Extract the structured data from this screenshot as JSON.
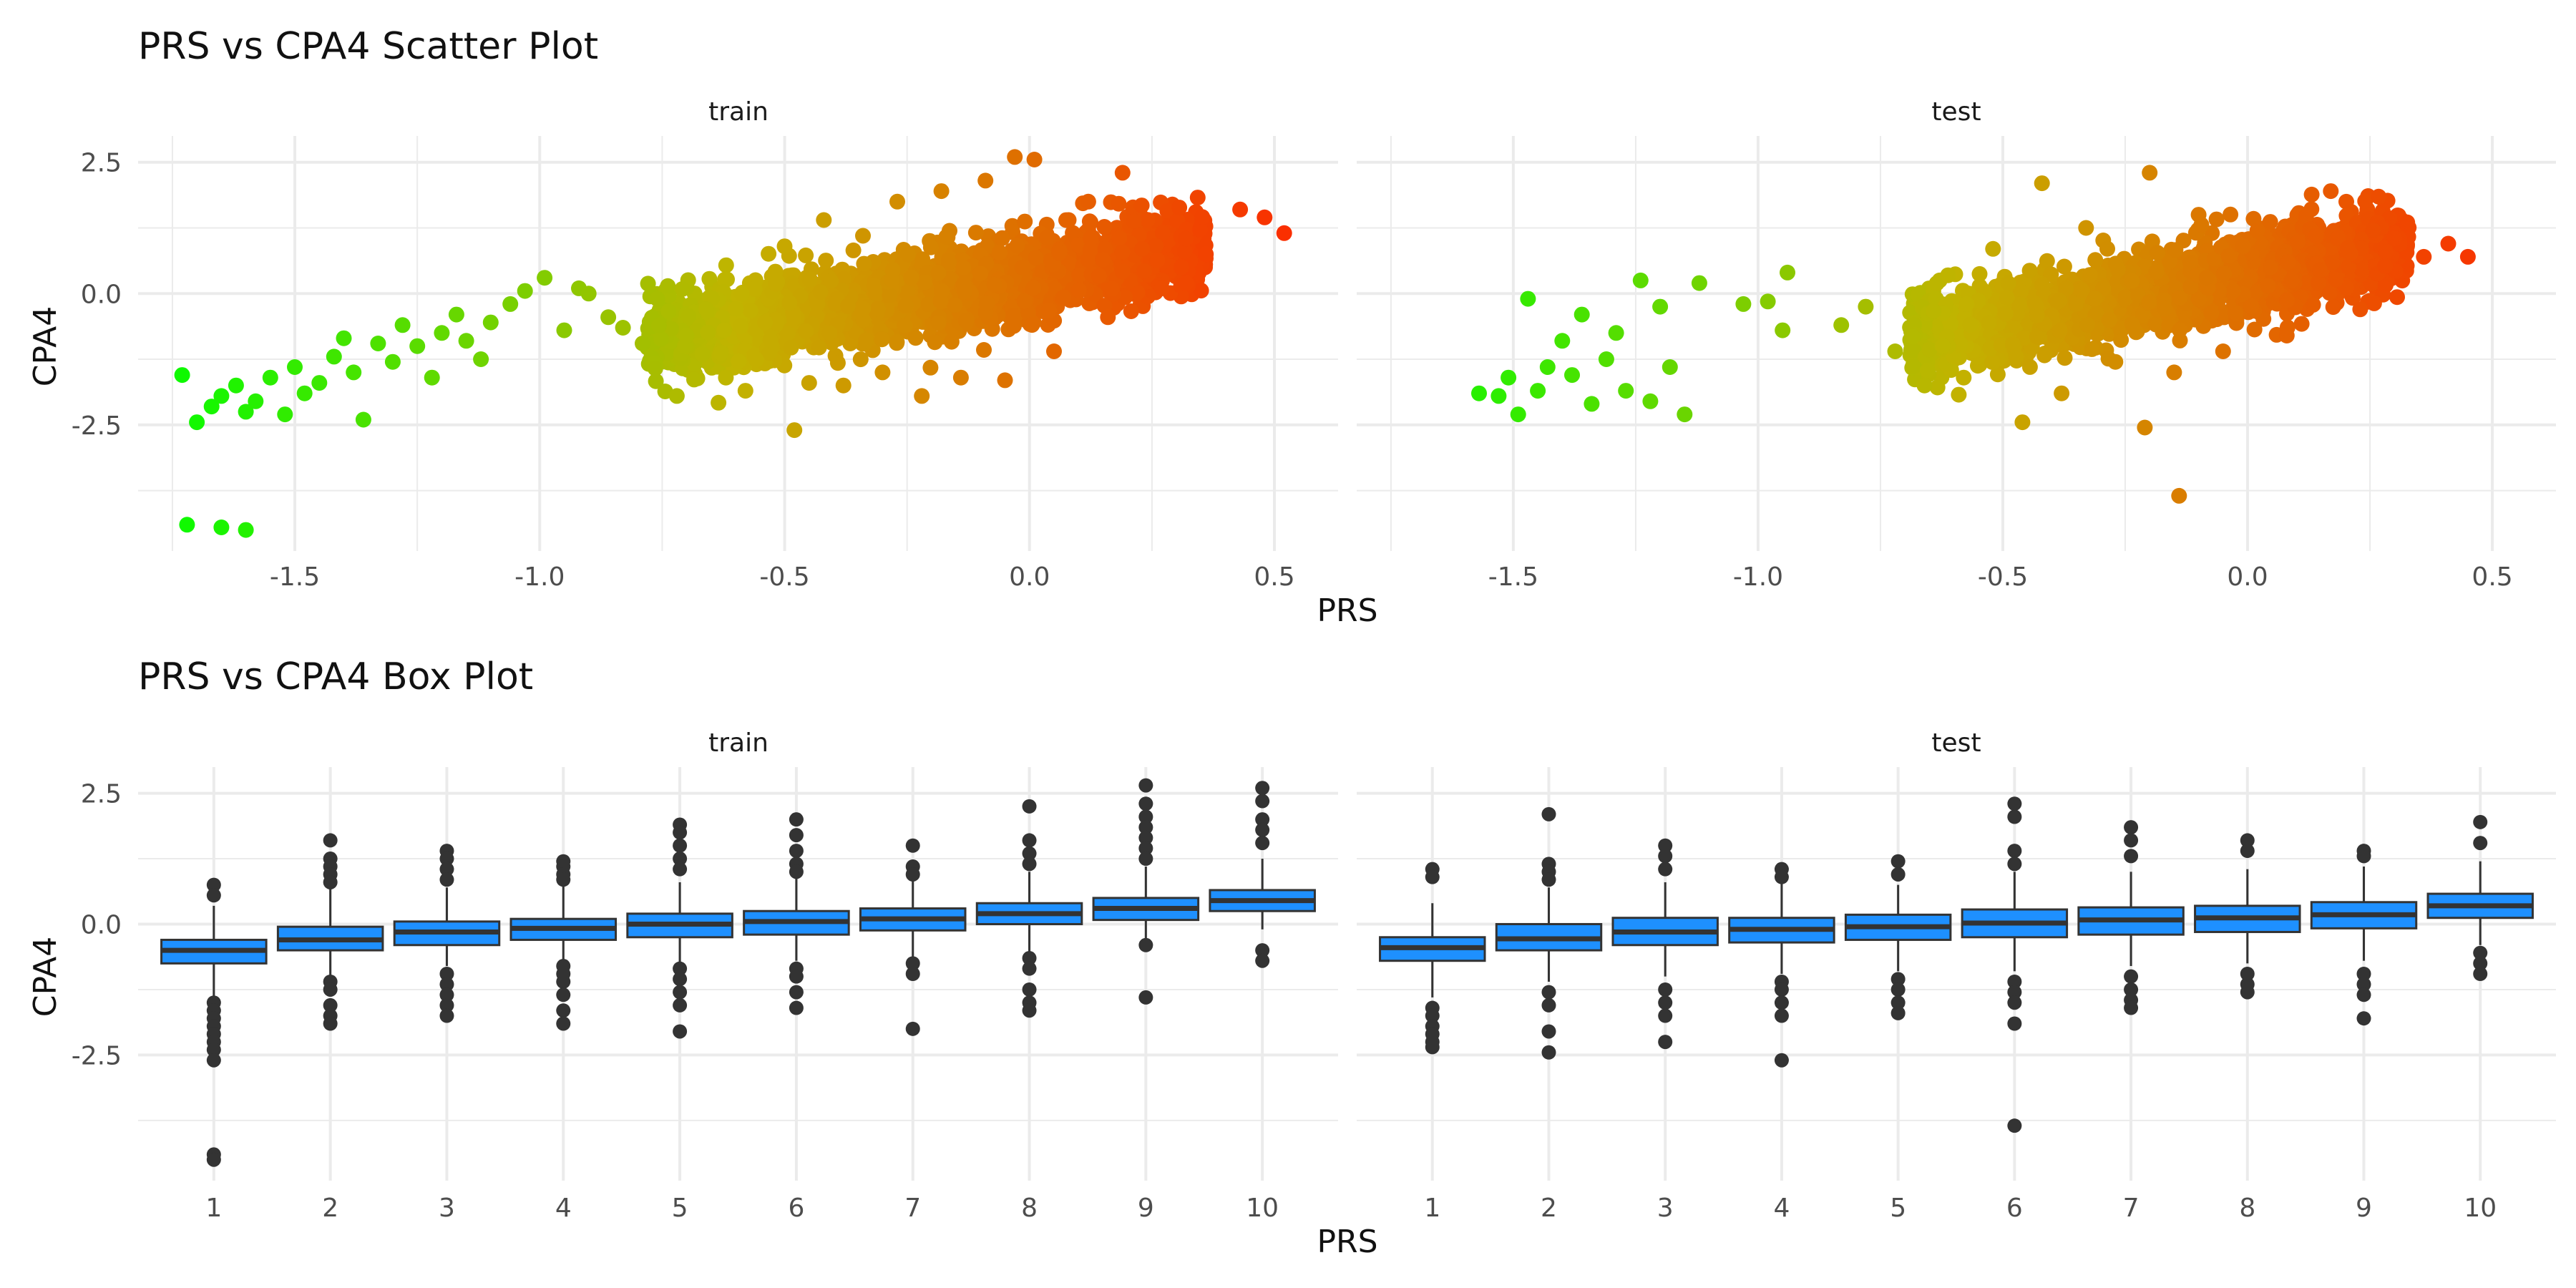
{
  "chart_data": [
    {
      "type": "scatter",
      "title": "PRS vs CPA4 Scatter Plot",
      "xlabel": "PRS",
      "ylabel": "CPA4",
      "grid": true,
      "legend": "none",
      "xlim": [
        -1.82,
        0.63
      ],
      "ylim": [
        -4.9,
        3.0
      ],
      "x_ticks": [
        -1.5,
        -1.0,
        -0.5,
        0.0,
        0.5
      ],
      "x_tick_labels": [
        "-1.5",
        "-1.0",
        "-0.5",
        "0.0",
        "0.5"
      ],
      "y_ticks": [
        2.5,
        0.0,
        -2.5
      ],
      "y_tick_labels": [
        "2.5",
        "0.0",
        "-2.5"
      ],
      "color_scale": {
        "low": "#00ff00",
        "mid": "#c2b300",
        "high": "#ff2200"
      },
      "panels": [
        {
          "name": "train",
          "points": [
            {
              "x": -1.73,
              "y": -1.55
            },
            {
              "x": -1.7,
              "y": -2.45
            },
            {
              "x": -1.67,
              "y": -2.15
            },
            {
              "x": -1.65,
              "y": -1.95
            },
            {
              "x": -1.62,
              "y": -1.75
            },
            {
              "x": -1.6,
              "y": -2.25
            },
            {
              "x": -1.58,
              "y": -2.05
            },
            {
              "x": -1.55,
              "y": -1.6
            },
            {
              "x": -1.52,
              "y": -2.3
            },
            {
              "x": -1.5,
              "y": -1.4
            },
            {
              "x": -1.48,
              "y": -1.9
            },
            {
              "x": -1.45,
              "y": -1.7
            },
            {
              "x": -1.42,
              "y": -1.2
            },
            {
              "x": -1.4,
              "y": -0.85
            },
            {
              "x": -1.38,
              "y": -1.5
            },
            {
              "x": -1.36,
              "y": -2.4
            },
            {
              "x": -1.33,
              "y": -0.95
            },
            {
              "x": -1.3,
              "y": -1.3
            },
            {
              "x": -1.28,
              "y": -0.6
            },
            {
              "x": -1.25,
              "y": -1.0
            },
            {
              "x": -1.22,
              "y": -1.6
            },
            {
              "x": -1.2,
              "y": -0.75
            },
            {
              "x": -1.17,
              "y": -0.4
            },
            {
              "x": -1.15,
              "y": -0.9
            },
            {
              "x": -1.12,
              "y": -1.25
            },
            {
              "x": -1.1,
              "y": -0.55
            },
            {
              "x": -1.06,
              "y": -0.2
            },
            {
              "x": -1.03,
              "y": 0.05
            },
            {
              "x": -0.99,
              "y": 0.3
            },
            {
              "x": -0.95,
              "y": -0.7
            },
            {
              "x": -0.92,
              "y": 0.1
            },
            {
              "x": -0.9,
              "y": 0.0
            },
            {
              "x": -0.86,
              "y": -0.45
            },
            {
              "x": -0.83,
              "y": -0.65
            },
            {
              "x": -0.79,
              "y": -0.95
            },
            {
              "x": -0.76,
              "y": -0.1
            },
            {
              "x": -0.72,
              "y": -1.95
            },
            {
              "x": -0.7,
              "y": -0.8
            },
            {
              "x": -0.66,
              "y": -0.3
            },
            {
              "x": -0.62,
              "y": -1.6
            },
            {
              "x": -0.58,
              "y": -1.85
            },
            {
              "x": -0.54,
              "y": -0.55
            },
            {
              "x": -0.5,
              "y": 0.9
            },
            {
              "x": -0.48,
              "y": -2.6
            },
            {
              "x": -0.45,
              "y": -1.7
            },
            {
              "x": -0.42,
              "y": 1.4
            },
            {
              "x": -0.38,
              "y": -1.75
            },
            {
              "x": -0.34,
              "y": 1.1
            },
            {
              "x": -0.3,
              "y": -1.5
            },
            {
              "x": -0.27,
              "y": 1.75
            },
            {
              "x": -0.22,
              "y": -1.95
            },
            {
              "x": -0.18,
              "y": 1.95
            },
            {
              "x": -0.14,
              "y": -1.6
            },
            {
              "x": -0.09,
              "y": 2.15
            },
            {
              "x": -0.05,
              "y": -1.65
            },
            {
              "x": -0.03,
              "y": 2.6
            },
            {
              "x": 0.01,
              "y": 2.55
            },
            {
              "x": 0.05,
              "y": -1.1
            },
            {
              "x": 0.08,
              "y": 1.4
            },
            {
              "x": 0.12,
              "y": 1.75
            },
            {
              "x": 0.16,
              "y": -0.45
            },
            {
              "x": 0.19,
              "y": 2.3
            },
            {
              "x": 0.23,
              "y": 0.85
            },
            {
              "x": 0.27,
              "y": 0.1
            },
            {
              "x": 0.31,
              "y": 0.5
            },
            {
              "x": 0.36,
              "y": 0.75
            },
            {
              "x": 0.43,
              "y": 1.6
            },
            {
              "x": 0.48,
              "y": 1.45
            },
            {
              "x": 0.52,
              "y": 1.15
            },
            {
              "x": -1.72,
              "y": -4.4
            },
            {
              "x": -1.65,
              "y": -4.45
            },
            {
              "x": -1.6,
              "y": -4.5
            }
          ]
        },
        {
          "name": "test",
          "points": [
            {
              "x": -1.57,
              "y": -1.9
            },
            {
              "x": -1.53,
              "y": -1.95
            },
            {
              "x": -1.51,
              "y": -1.6
            },
            {
              "x": -1.49,
              "y": -2.3
            },
            {
              "x": -1.47,
              "y": -0.1
            },
            {
              "x": -1.45,
              "y": -1.85
            },
            {
              "x": -1.43,
              "y": -1.4
            },
            {
              "x": -1.4,
              "y": -0.9
            },
            {
              "x": -1.38,
              "y": -1.55
            },
            {
              "x": -1.36,
              "y": -0.4
            },
            {
              "x": -1.34,
              "y": -2.1
            },
            {
              "x": -1.31,
              "y": -1.25
            },
            {
              "x": -1.29,
              "y": -0.75
            },
            {
              "x": -1.27,
              "y": -1.85
            },
            {
              "x": -1.24,
              "y": 0.25
            },
            {
              "x": -1.22,
              "y": -2.05
            },
            {
              "x": -1.2,
              "y": -0.25
            },
            {
              "x": -1.18,
              "y": -1.4
            },
            {
              "x": -1.15,
              "y": -2.3
            },
            {
              "x": -1.12,
              "y": 0.2
            },
            {
              "x": -1.03,
              "y": -0.2
            },
            {
              "x": -0.98,
              "y": -0.15
            },
            {
              "x": -0.95,
              "y": -0.7
            },
            {
              "x": -0.94,
              "y": 0.4
            },
            {
              "x": -0.83,
              "y": -0.6
            },
            {
              "x": -0.78,
              "y": -0.25
            },
            {
              "x": -0.72,
              "y": -1.1
            },
            {
              "x": -0.66,
              "y": -1.75
            },
            {
              "x": -0.58,
              "y": -1.6
            },
            {
              "x": -0.52,
              "y": 0.85
            },
            {
              "x": -0.46,
              "y": -2.45
            },
            {
              "x": -0.42,
              "y": 2.1
            },
            {
              "x": -0.38,
              "y": -1.9
            },
            {
              "x": -0.33,
              "y": 1.25
            },
            {
              "x": -0.27,
              "y": -1.3
            },
            {
              "x": -0.21,
              "y": -2.55
            },
            {
              "x": -0.2,
              "y": 2.3
            },
            {
              "x": -0.15,
              "y": -1.5
            },
            {
              "x": -0.14,
              "y": -3.85
            },
            {
              "x": -0.1,
              "y": 1.5
            },
            {
              "x": -0.05,
              "y": -1.1
            },
            {
              "x": 0.02,
              "y": 1.2
            },
            {
              "x": 0.08,
              "y": -0.8
            },
            {
              "x": 0.14,
              "y": 1.1
            },
            {
              "x": 0.17,
              "y": 1.95
            },
            {
              "x": 0.23,
              "y": -0.3
            },
            {
              "x": 0.3,
              "y": 1.05
            },
            {
              "x": 0.36,
              "y": 0.7
            },
            {
              "x": 0.41,
              "y": 0.95
            },
            {
              "x": 0.45,
              "y": 0.7
            }
          ]
        }
      ]
    },
    {
      "type": "box",
      "title": "PRS vs CPA4 Box Plot",
      "xlabel": "PRS",
      "ylabel": "CPA4",
      "grid": true,
      "legend": "none",
      "ylim": [
        -4.9,
        3.0
      ],
      "categories": [
        "1",
        "2",
        "3",
        "4",
        "5",
        "6",
        "7",
        "8",
        "9",
        "10"
      ],
      "y_ticks": [
        2.5,
        0.0,
        -2.5
      ],
      "y_tick_labels": [
        "2.5",
        "0.0",
        "-2.5"
      ],
      "box_color": "#1e90ff",
      "panels": [
        {
          "name": "train",
          "boxes": [
            {
              "q1": -0.75,
              "median": -0.5,
              "q3": -0.3,
              "whisker_low": -1.4,
              "whisker_high": 0.35,
              "outliers": [
                0.75,
                0.55,
                -1.5,
                -1.65,
                -1.8,
                -1.95,
                -2.1,
                -2.25,
                -2.4,
                -2.6,
                -4.4,
                -4.5
              ]
            },
            {
              "q1": -0.5,
              "median": -0.3,
              "q3": -0.05,
              "whisker_low": -1.0,
              "whisker_high": 0.7,
              "outliers": [
                1.6,
                1.25,
                1.1,
                0.95,
                0.8,
                -1.1,
                -1.25,
                -1.55,
                -1.75,
                -1.9
              ]
            },
            {
              "q1": -0.4,
              "median": -0.15,
              "q3": 0.05,
              "whisker_low": -0.8,
              "whisker_high": 0.7,
              "outliers": [
                1.4,
                1.25,
                1.05,
                0.85,
                -0.95,
                -1.15,
                -1.35,
                -1.55,
                -1.75
              ]
            },
            {
              "q1": -0.3,
              "median": -0.08,
              "q3": 0.1,
              "whisker_low": -0.75,
              "whisker_high": 0.75,
              "outliers": [
                1.2,
                1.1,
                0.95,
                0.85,
                -0.8,
                -0.95,
                -1.1,
                -1.35,
                -1.65,
                -1.9
              ]
            },
            {
              "q1": -0.25,
              "median": 0.0,
              "q3": 0.2,
              "whisker_low": -0.75,
              "whisker_high": 0.8,
              "outliers": [
                1.9,
                1.75,
                1.5,
                1.25,
                1.05,
                -0.85,
                -1.05,
                -1.3,
                -1.55,
                -2.05
              ]
            },
            {
              "q1": -0.2,
              "median": 0.05,
              "q3": 0.25,
              "whisker_low": -0.7,
              "whisker_high": 0.9,
              "outliers": [
                2.0,
                1.7,
                1.4,
                1.15,
                1.0,
                -0.85,
                -1.0,
                -1.3,
                -1.6
              ]
            },
            {
              "q1": -0.12,
              "median": 0.1,
              "q3": 0.3,
              "whisker_low": -0.65,
              "whisker_high": 0.9,
              "outliers": [
                1.5,
                1.1,
                0.95,
                -0.75,
                -0.95,
                -2.0
              ]
            },
            {
              "q1": 0.0,
              "median": 0.2,
              "q3": 0.4,
              "whisker_low": -0.55,
              "whisker_high": 1.0,
              "outliers": [
                2.25,
                1.6,
                1.35,
                1.15,
                -0.65,
                -0.85,
                -1.25,
                -1.5,
                -1.65
              ]
            },
            {
              "q1": 0.08,
              "median": 0.3,
              "q3": 0.5,
              "whisker_low": -0.3,
              "whisker_high": 1.1,
              "outliers": [
                2.65,
                2.3,
                2.05,
                1.85,
                1.65,
                1.45,
                1.25,
                -0.4,
                -1.4
              ]
            },
            {
              "q1": 0.25,
              "median": 0.45,
              "q3": 0.65,
              "whisker_low": -0.1,
              "whisker_high": 1.25,
              "outliers": [
                2.6,
                2.35,
                2.0,
                1.8,
                1.55,
                -0.5,
                -0.7
              ]
            }
          ]
        },
        {
          "name": "test",
          "boxes": [
            {
              "q1": -0.7,
              "median": -0.45,
              "q3": -0.25,
              "whisker_low": -1.4,
              "whisker_high": 0.4,
              "outliers": [
                1.05,
                0.9,
                -1.6,
                -1.75,
                -1.95,
                -2.1,
                -2.25,
                -2.35
              ]
            },
            {
              "q1": -0.5,
              "median": -0.28,
              "q3": 0.0,
              "whisker_low": -1.1,
              "whisker_high": 0.7,
              "outliers": [
                2.1,
                1.15,
                1.0,
                0.85,
                -1.3,
                -1.55,
                -2.05,
                -2.45
              ]
            },
            {
              "q1": -0.4,
              "median": -0.15,
              "q3": 0.12,
              "whisker_low": -1.0,
              "whisker_high": 0.8,
              "outliers": [
                1.5,
                1.3,
                1.05,
                -1.25,
                -1.5,
                -1.75,
                -2.25
              ]
            },
            {
              "q1": -0.35,
              "median": -0.1,
              "q3": 0.12,
              "whisker_low": -0.95,
              "whisker_high": 0.8,
              "outliers": [
                1.05,
                0.9,
                -1.1,
                -1.25,
                -1.5,
                -1.75,
                -2.6
              ]
            },
            {
              "q1": -0.3,
              "median": -0.05,
              "q3": 0.18,
              "whisker_low": -0.9,
              "whisker_high": 0.75,
              "outliers": [
                1.2,
                0.95,
                -1.05,
                -1.25,
                -1.5,
                -1.7
              ]
            },
            {
              "q1": -0.25,
              "median": 0.02,
              "q3": 0.28,
              "whisker_low": -0.9,
              "whisker_high": 1.0,
              "outliers": [
                2.3,
                2.05,
                1.4,
                1.15,
                -1.1,
                -1.3,
                -1.5,
                -1.9,
                -3.85
              ]
            },
            {
              "q1": -0.2,
              "median": 0.08,
              "q3": 0.32,
              "whisker_low": -0.8,
              "whisker_high": 1.0,
              "outliers": [
                1.85,
                1.6,
                1.3,
                -1.0,
                -1.25,
                -1.45,
                -1.6
              ]
            },
            {
              "q1": -0.15,
              "median": 0.12,
              "q3": 0.35,
              "whisker_low": -0.75,
              "whisker_high": 1.05,
              "outliers": [
                1.6,
                1.4,
                -0.95,
                -1.15,
                -1.3
              ]
            },
            {
              "q1": -0.08,
              "median": 0.18,
              "q3": 0.42,
              "whisker_low": -0.7,
              "whisker_high": 1.1,
              "outliers": [
                1.4,
                1.3,
                -0.95,
                -1.15,
                -1.35,
                -1.8
              ]
            },
            {
              "q1": 0.12,
              "median": 0.35,
              "q3": 0.58,
              "whisker_low": -0.4,
              "whisker_high": 1.2,
              "outliers": [
                1.95,
                1.55,
                -0.55,
                -0.75,
                -0.95
              ]
            }
          ]
        }
      ]
    }
  ]
}
